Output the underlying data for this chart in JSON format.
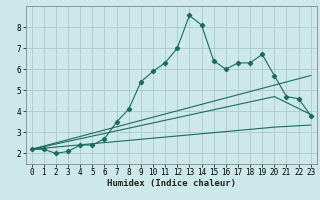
{
  "xlabel": "Humidex (Indice chaleur)",
  "background_color": "#cce8e8",
  "grid_color": "#aacaca",
  "line_color": "#1a6b5a",
  "xlim": [
    -0.5,
    23.5
  ],
  "ylim": [
    1.5,
    9.0
  ],
  "x_ticks": [
    0,
    1,
    2,
    3,
    4,
    5,
    6,
    7,
    8,
    9,
    10,
    11,
    12,
    13,
    14,
    15,
    16,
    17,
    18,
    19,
    20,
    21,
    22,
    23
  ],
  "y_ticks": [
    2,
    3,
    4,
    5,
    6,
    7,
    8
  ],
  "line1_x": [
    0,
    1,
    2,
    3,
    4,
    5,
    6,
    7,
    8,
    9,
    10,
    11,
    12,
    13,
    14,
    15,
    16,
    17,
    18,
    19,
    20,
    21,
    22,
    23
  ],
  "line1_y": [
    2.2,
    2.2,
    2.0,
    2.1,
    2.4,
    2.4,
    2.7,
    3.5,
    4.1,
    5.4,
    5.9,
    6.3,
    7.0,
    8.55,
    8.1,
    6.4,
    6.0,
    6.3,
    6.3,
    6.7,
    5.7,
    4.7,
    4.6,
    3.8
  ],
  "line2_x": [
    0,
    23
  ],
  "line2_y": [
    2.2,
    5.7
  ],
  "line3_x": [
    0,
    20,
    23
  ],
  "line3_y": [
    2.2,
    4.7,
    3.85
  ],
  "line4_x": [
    0,
    20,
    23
  ],
  "line4_y": [
    2.2,
    3.25,
    3.35
  ]
}
